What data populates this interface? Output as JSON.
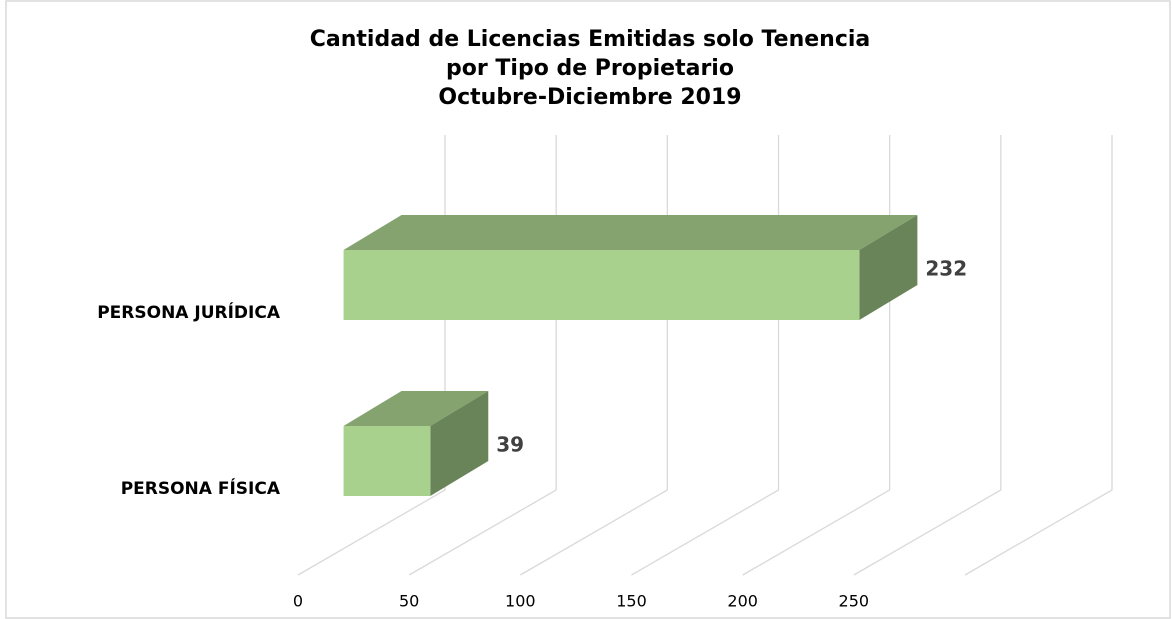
{
  "chart_data": {
    "type": "bar3d",
    "title": [
      "Cantidad de Licencias Emitidas solo Tenencia",
      "por Tipo de Propietario",
      "Octubre-Diciembre 2019"
    ],
    "categories": [
      "PERSONA JURÍDICA",
      "PERSONA FÍSICA"
    ],
    "values": [
      232,
      39
    ],
    "color": "#a9d18e",
    "xlim": [
      0,
      300
    ],
    "xticks": [
      0,
      50,
      100,
      150,
      200,
      250
    ],
    "grid": true
  }
}
